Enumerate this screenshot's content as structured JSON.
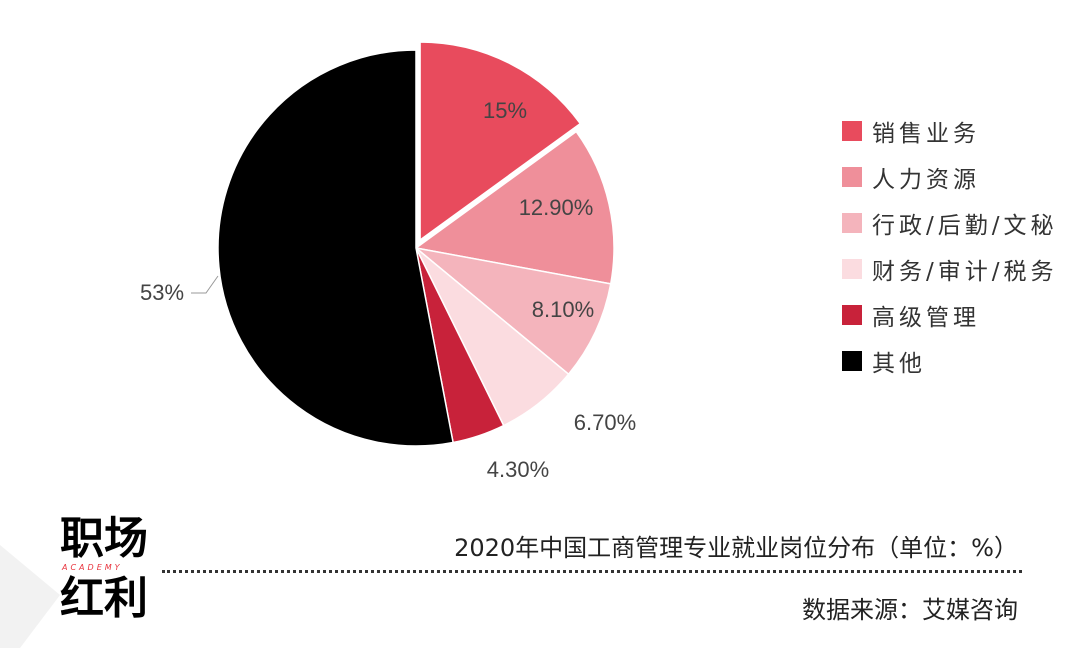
{
  "chart_data": {
    "type": "pie",
    "title": "2020年中国工商管理专业就业岗位分布（单位：%）",
    "unit": "%",
    "legend_position": "right",
    "slices": [
      {
        "label": "销售业务",
        "value": 15,
        "value_label": "15%",
        "color": "#e84b5d",
        "exploded": true
      },
      {
        "label": "人力资源",
        "value": 12.9,
        "value_label": "12.90%",
        "color": "#ef8f9a"
      },
      {
        "label": "行政/后勤/文秘",
        "value": 8.1,
        "value_label": "8.10%",
        "color": "#f4b4bc"
      },
      {
        "label": "财务/审计/税务",
        "value": 6.7,
        "value_label": "6.70%",
        "color": "#fbdce0"
      },
      {
        "label": "高级管理",
        "value": 4.3,
        "value_label": "4.30%",
        "color": "#c8223a"
      },
      {
        "label": "其他",
        "value": 53,
        "value_label": "53%",
        "color": "#000000"
      }
    ]
  },
  "source": "数据来源：艾媒咨询",
  "logo": {
    "line1": "职场",
    "line2": "红利",
    "sub": "ACADEMY",
    "accent_color": "#e8323c"
  }
}
